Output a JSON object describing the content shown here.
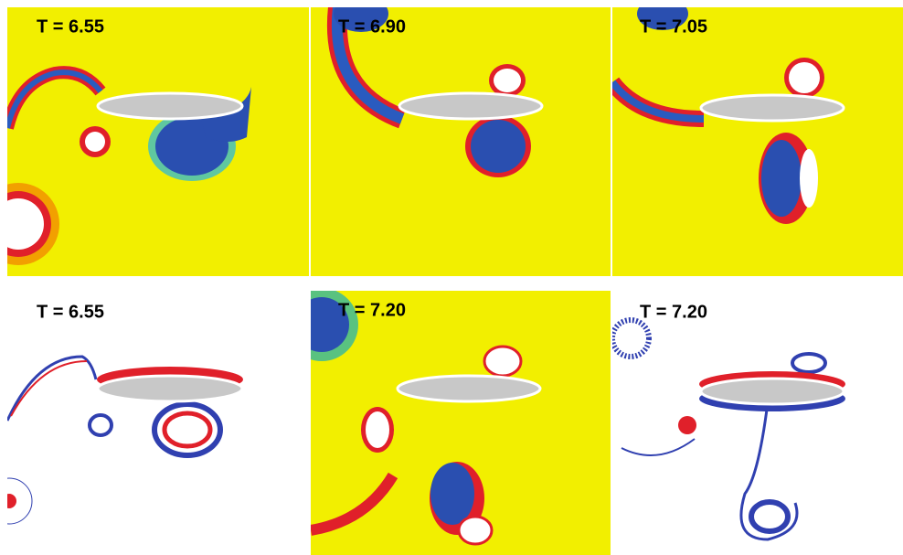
{
  "panels": [
    {
      "label": "T =  6.55"
    },
    {
      "label": "T =  6.90"
    },
    {
      "label": "T =  7.05"
    },
    {
      "label": "T =  6.55"
    },
    {
      "label": "T =  7.20"
    },
    {
      "label": "T =  7.20"
    }
  ]
}
